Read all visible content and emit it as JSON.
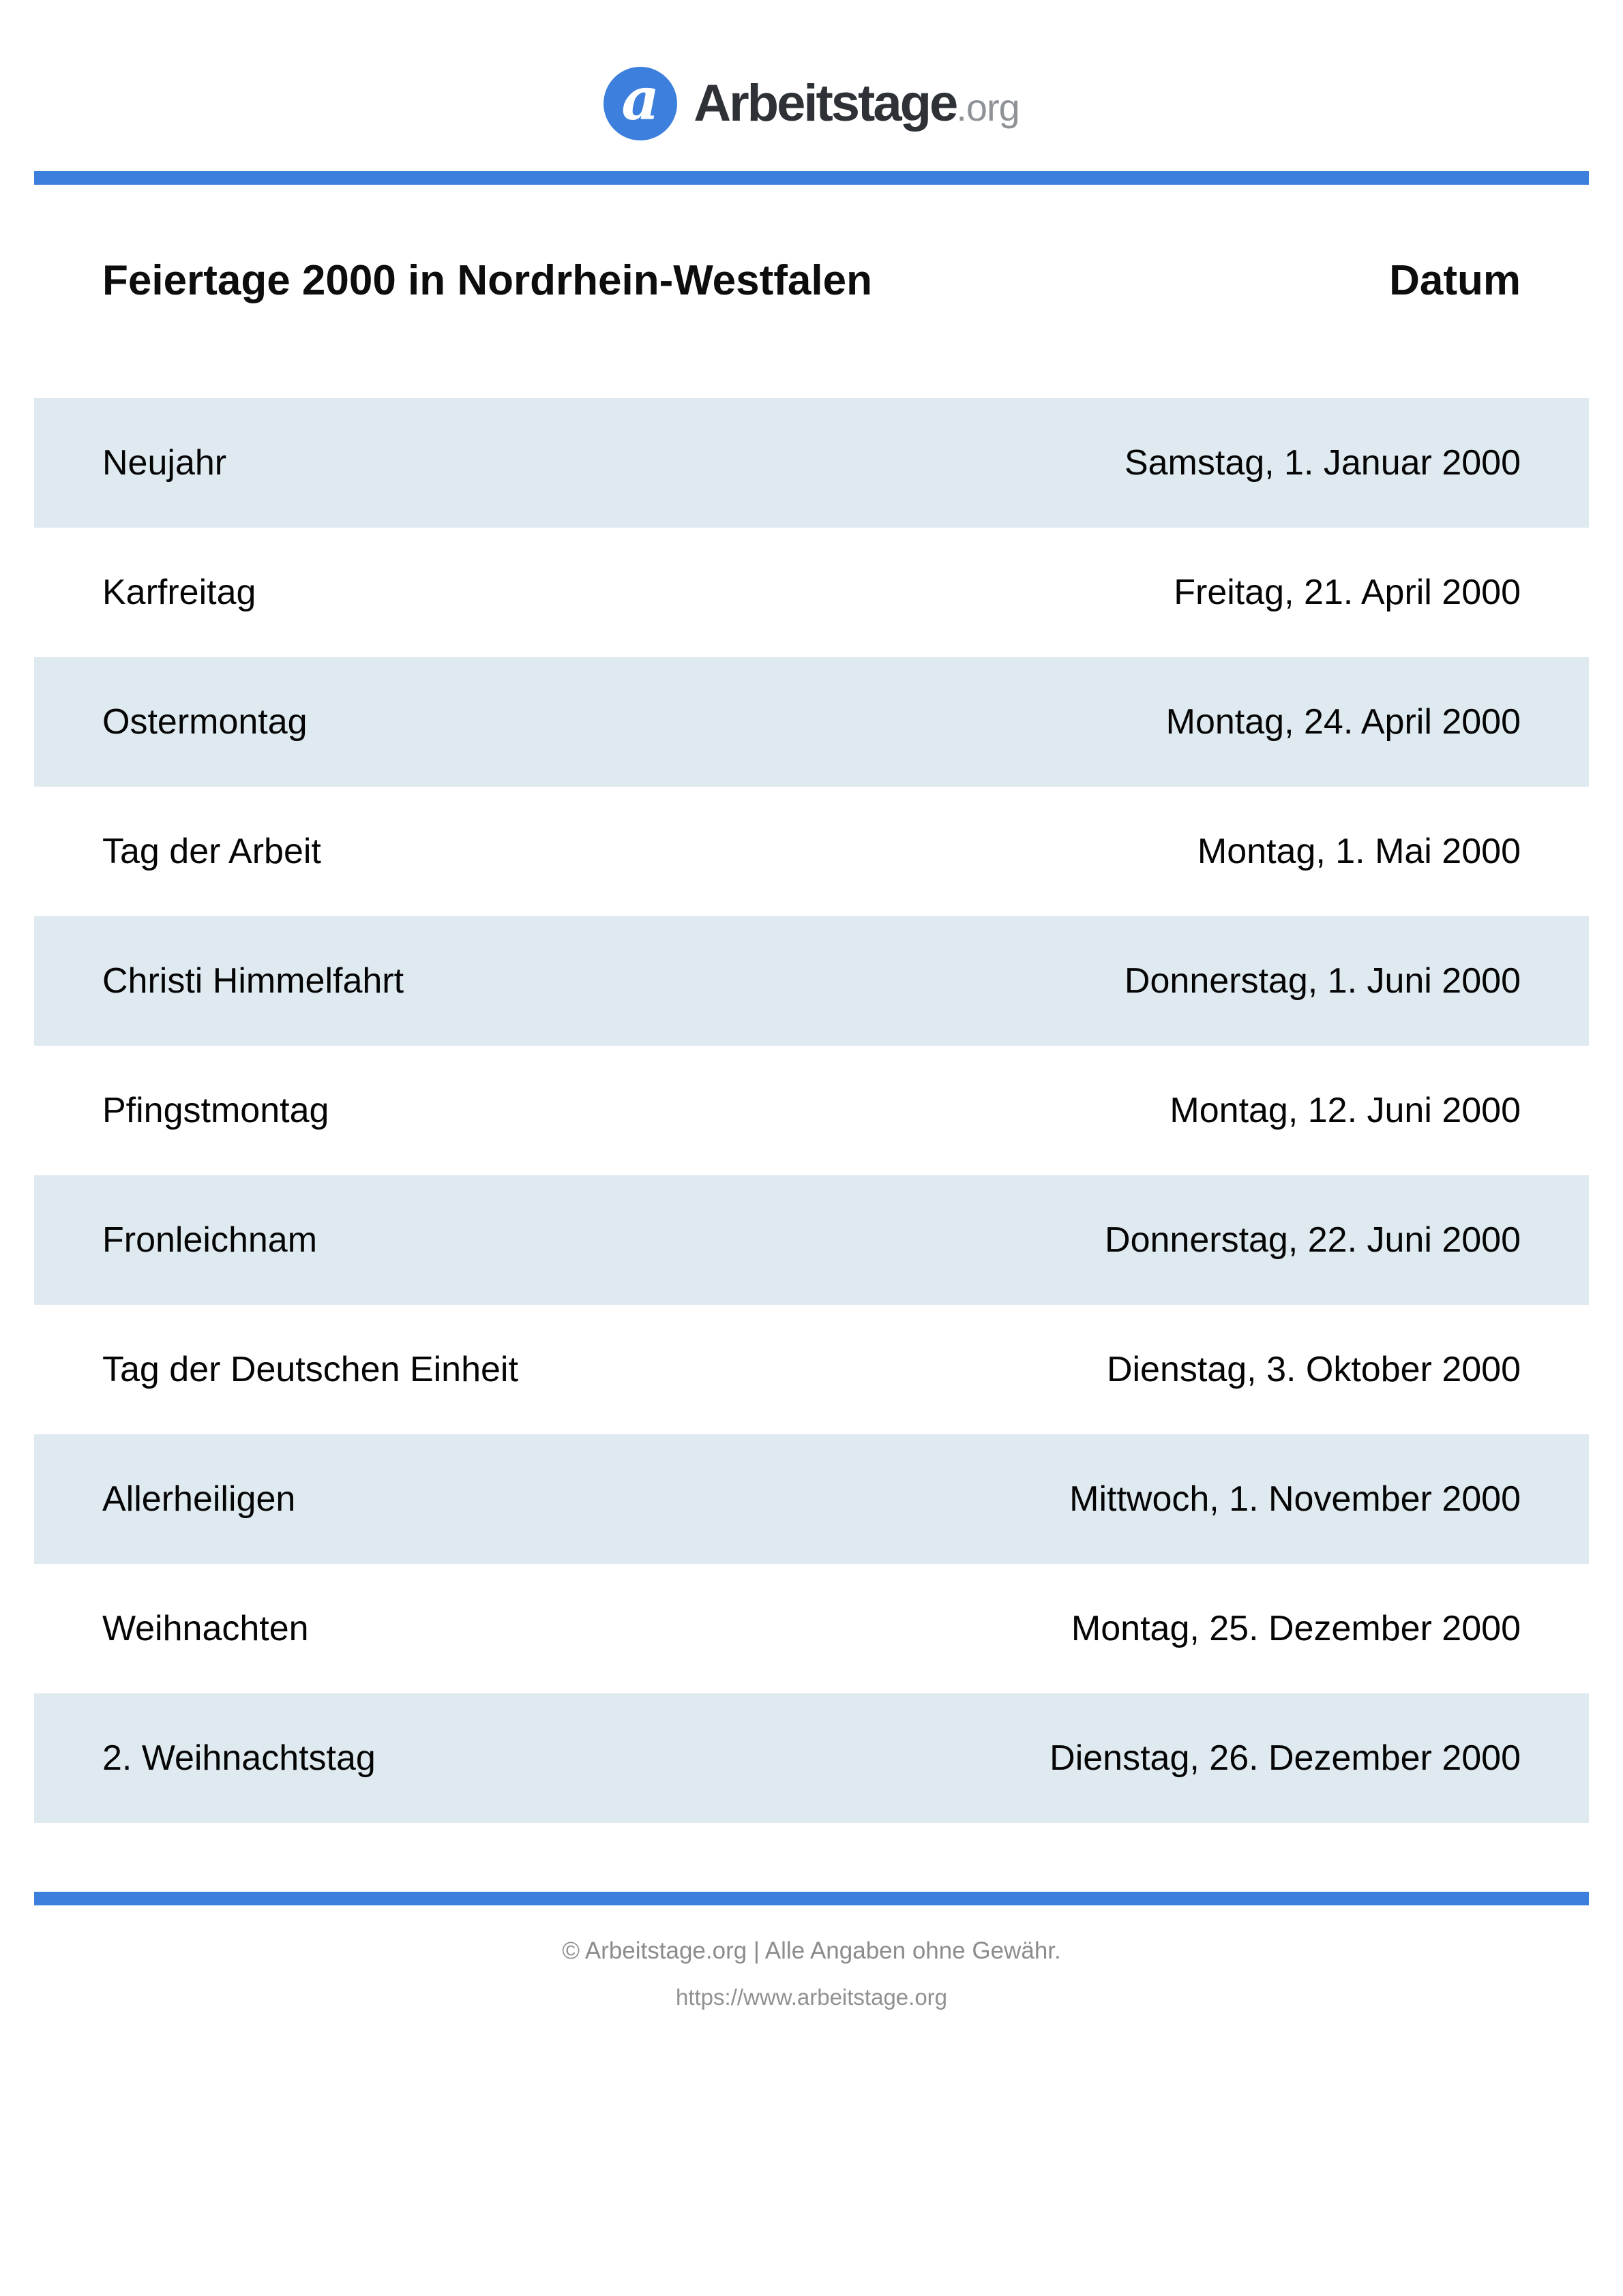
{
  "header": {
    "logo": {
      "icon_letter": "a",
      "wordmark": "Arbeitstage",
      "tld": ".org"
    }
  },
  "title_row": {
    "title": "Feiertage 2000 in Nordrhein-Westfalen",
    "date_column_label": "Datum"
  },
  "table": {
    "rows": [
      {
        "name": "Neujahr",
        "date": "Samstag, 1. Januar 2000"
      },
      {
        "name": "Karfreitag",
        "date": "Freitag, 21. April 2000"
      },
      {
        "name": "Ostermontag",
        "date": "Montag, 24. April 2000"
      },
      {
        "name": "Tag der Arbeit",
        "date": "Montag, 1. Mai 2000"
      },
      {
        "name": "Christi Himmelfahrt",
        "date": "Donnerstag, 1. Juni 2000"
      },
      {
        "name": "Pfingstmontag",
        "date": "Montag, 12. Juni 2000"
      },
      {
        "name": "Fronleichnam",
        "date": "Donnerstag, 22. Juni 2000"
      },
      {
        "name": "Tag der Deutschen Einheit",
        "date": "Dienstag, 3. Oktober 2000"
      },
      {
        "name": "Allerheiligen",
        "date": "Mittwoch, 1. November 2000"
      },
      {
        "name": "Weihnachten",
        "date": "Montag, 25. Dezember 2000"
      },
      {
        "name": "2. Weihnachtstag",
        "date": "Dienstag, 26. Dezember 2000"
      }
    ]
  },
  "footer": {
    "copyright": "© Arbeitstage.org | Alle Angaben ohne Gewähr.",
    "url": "https://www.arbeitstage.org"
  },
  "colors": {
    "accent_blue": "#3c7fdd",
    "row_highlight": "#dfe9f0",
    "wordmark_dark": "#2e3237",
    "tld_gray": "#8f9398",
    "footer_gray": "#8c8c8c"
  }
}
